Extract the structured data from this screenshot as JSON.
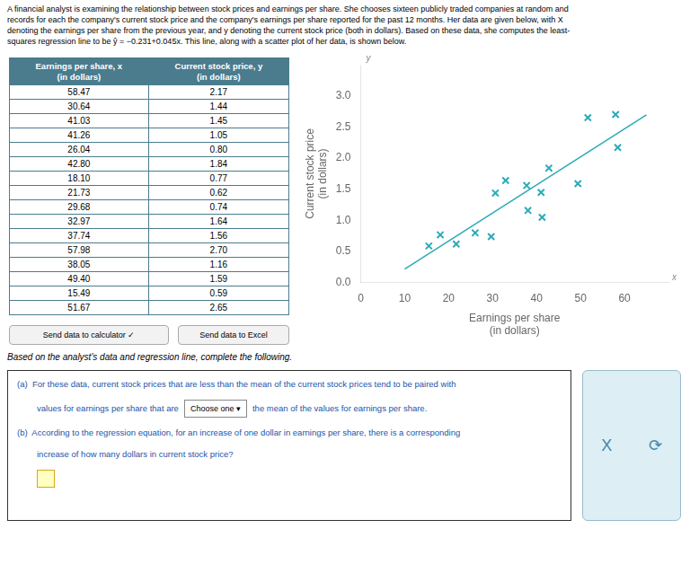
{
  "chart_data": [
    {
      "type": "table",
      "columns": [
        "Earnings per share, x\n(in dollars)",
        "Current stock price, y\n(in dollars)"
      ],
      "rows": [
        [
          "58.47",
          "2.17"
        ],
        [
          "30.64",
          "1.44"
        ],
        [
          "41.03",
          "1.45"
        ],
        [
          "41.26",
          "1.05"
        ],
        [
          "26.04",
          "0.80"
        ],
        [
          "42.80",
          "1.84"
        ],
        [
          "18.10",
          "0.77"
        ],
        [
          "21.73",
          "0.62"
        ],
        [
          "29.68",
          "0.74"
        ],
        [
          "32.97",
          "1.64"
        ],
        [
          "37.74",
          "1.56"
        ],
        [
          "57.98",
          "2.70"
        ],
        [
          "38.05",
          "1.16"
        ],
        [
          "49.40",
          "1.59"
        ],
        [
          "15.49",
          "0.59"
        ],
        [
          "51.67",
          "2.65"
        ]
      ]
    },
    {
      "type": "scatter",
      "x_label": "Earnings per share\n(in dollars)",
      "y_label": "Current stock price\n(in dollars)",
      "series": [
        {
          "type": "scatter",
          "color": "#29ABB8",
          "marker": "x",
          "x": [
            58.47,
            30.64,
            41.03,
            41.26,
            26.04,
            42.8,
            18.1,
            21.73,
            29.68,
            32.97,
            37.74,
            57.98,
            38.05,
            49.4,
            15.49,
            51.67
          ],
          "values": [
            2.17,
            1.44,
            1.45,
            1.05,
            0.8,
            1.84,
            0.77,
            0.62,
            0.74,
            1.64,
            1.56,
            2.7,
            1.16,
            1.59,
            0.59,
            2.65
          ]
        },
        {
          "type": "line",
          "color": "#29ABB8",
          "line_style": "solid",
          "x": [
            10,
            65
          ],
          "values": [
            0.219,
            2.694
          ]
        }
      ],
      "xlim": [
        0,
        70
      ],
      "ylim": [
        0,
        3.5
      ],
      "xticks": [
        0,
        10,
        20,
        30,
        40,
        50,
        60
      ],
      "yticks": [
        {
          "value": 0,
          "label": "0.0"
        },
        0.5,
        {
          "value": 1,
          "label": "1.0"
        },
        1.5,
        {
          "value": 2,
          "label": "2.0"
        },
        2.5,
        {
          "value": 3,
          "label": "3.0"
        }
      ],
      "grid": false,
      "annotations": [
        "A financial analyst is examining the relationship between stock prices and earnings per share. She chooses sixteen publicly traded companies at random and",
        "records for each the company's current stock price and the company's earnings per share reported for the past 12 months. Her data are given below, with X",
        "denoting the earnings per share from the previous year, and y denoting the current stock price (both in dollars). Based on these data, she computes the least-",
        "squares regression line to be ŷ = −0.231+0.045x. This line, along with a scatter plot of her data, is shown below.",
        "Based on the analyst's data and regression line, complete the following.",
        "(a)  For these data, current stock prices that are less than the mean of the current stock prices tend to be paired with",
        "values for earnings per share that are",
        "Choose one",
        "▾",
        "the mean of the values for earnings per share.",
        "(b)  According to the regression equation, for an increase of one dollar in earnings per share, there is a corresponding",
        "increase of how many dollars in current stock price?",
        "Send data to calculator",
        "✓",
        "Send data to Excel",
        "X",
        "⟳",
        "y",
        "x"
      ]
    }
  ]
}
